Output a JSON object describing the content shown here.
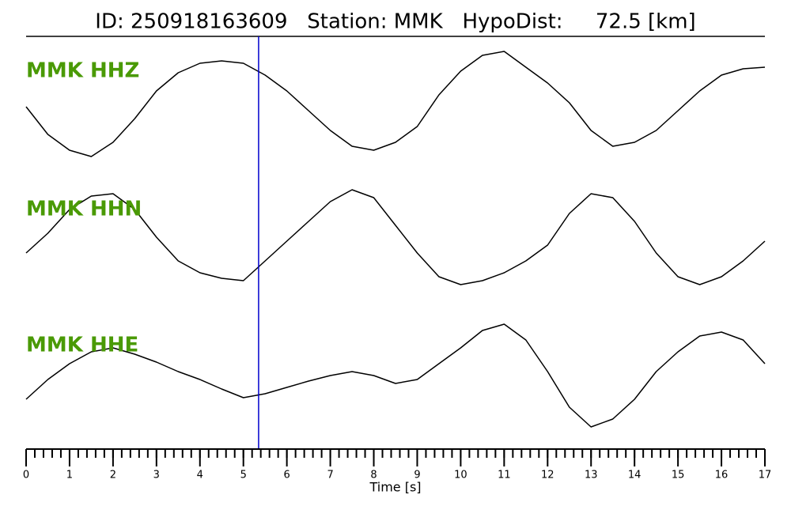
{
  "chart_data": {
    "type": "line",
    "title": "ID: 250918163609   Station: MMK   HypoDist:     72.5 [km]",
    "x_label": "Time [s]",
    "x": [
      0,
      0.5,
      1,
      1.5,
      2,
      2.5,
      3,
      3.5,
      4,
      4.5,
      5,
      5.5,
      6,
      6.5,
      7,
      7.5,
      8,
      8.5,
      9,
      9.5,
      10,
      10.5,
      11,
      11.5,
      12,
      12.5,
      13,
      13.5,
      14,
      14.5,
      15,
      15.5,
      16,
      16.5,
      17
    ],
    "xlim": [
      0,
      17
    ],
    "xticks": [
      0,
      1,
      2,
      3,
      4,
      5,
      6,
      7,
      8,
      9,
      10,
      11,
      12,
      13,
      14,
      15,
      16,
      17
    ],
    "xminor_step": 0.2,
    "pick_time": 5.35,
    "pick_color": "#0000cc",
    "label_color": "#4a9a06",
    "series": [
      {
        "name": "MMK HHZ",
        "color": "#000000",
        "values": [
          3,
          -32,
          -52,
          -60,
          -42,
          -12,
          23,
          46,
          58,
          61,
          58,
          43,
          23,
          -2,
          -27,
          -47,
          -52,
          -42,
          -22,
          18,
          48,
          68,
          73,
          53,
          33,
          8,
          -27,
          -47,
          -42,
          -27,
          -2,
          23,
          43,
          51,
          53
        ]
      },
      {
        "name": "MMK HHN",
        "color": "#000000",
        "values": [
          -25,
          0,
          30,
          47,
          50,
          30,
          -5,
          -35,
          -50,
          -57,
          -60,
          -35,
          -10,
          15,
          40,
          55,
          45,
          10,
          -25,
          -55,
          -65,
          -60,
          -50,
          -35,
          -15,
          25,
          50,
          45,
          15,
          -25,
          -55,
          -65,
          -55,
          -35,
          -10
        ]
      },
      {
        "name": "MMK HHE",
        "color": "#000000",
        "values": [
          -35,
          -10,
          10,
          25,
          30,
          22,
          12,
          0,
          -10,
          -22,
          -33,
          -28,
          -20,
          -12,
          -5,
          0,
          -5,
          -15,
          -10,
          10,
          30,
          52,
          60,
          40,
          0,
          -45,
          -70,
          -60,
          -35,
          0,
          25,
          45,
          50,
          40,
          10
        ]
      }
    ]
  }
}
